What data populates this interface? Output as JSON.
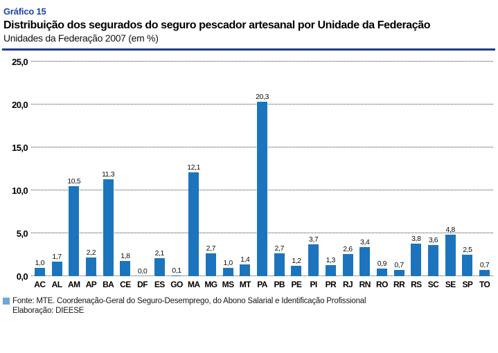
{
  "header": {
    "kicker": "Gráfico 15",
    "title": "Distribuição dos segurados do seguro pescador artesanal por Unidade da Federação",
    "subtitle": "Unidades da Federação 2007 (em %)"
  },
  "footer": {
    "source": "Fonte: MTE. Coordenação-Geral do Seguro-Desemprego, do Abono Salarial e Identificação Profissional",
    "elaboration": "Elaboração: DIEESE"
  },
  "colors": {
    "bar": "#1c75bc",
    "accent_rule": "#20398f",
    "kicker_text": "#1b43a5",
    "legend_square": "#6fa8d4",
    "gridline": "#3a3a3a"
  },
  "chart_data": {
    "type": "bar",
    "title": "Distribuição dos segurados do seguro pescador artesanal por Unidade da Federação",
    "subtitle": "Unidades da Federação 2007 (em %)",
    "xlabel": "",
    "ylabel": "",
    "ylim": [
      0,
      25
    ],
    "grid": "horizontal-dotted",
    "legend_position": "none",
    "yticks": [
      0,
      5,
      10,
      15,
      20,
      25
    ],
    "ytick_labels": [
      "0,0",
      "5,0",
      "10,0",
      "15,0",
      "20,0",
      "25,0"
    ],
    "categories": [
      "AC",
      "AL",
      "AM",
      "AP",
      "BA",
      "CE",
      "DF",
      "ES",
      "GO",
      "MA",
      "MG",
      "MS",
      "MT",
      "PA",
      "PB",
      "PE",
      "PI",
      "PR",
      "RJ",
      "RN",
      "RO",
      "RR",
      "RS",
      "SC",
      "SE",
      "SP",
      "TO"
    ],
    "values": [
      1.0,
      1.7,
      10.5,
      2.2,
      11.3,
      1.8,
      0.0,
      2.1,
      0.1,
      12.1,
      2.7,
      1.0,
      1.4,
      20.3,
      2.7,
      1.2,
      3.7,
      1.3,
      2.6,
      3.4,
      0.9,
      0.7,
      3.8,
      3.6,
      4.8,
      2.5,
      0.7
    ],
    "value_labels": [
      "1,0",
      "1,7",
      "10,5",
      "2,2",
      "11,3",
      "1,8",
      "0,0",
      "2,1",
      "0,1",
      "12,1",
      "2,7",
      "1,0",
      "1,4",
      "20,3",
      "2,7",
      "1,2",
      "3,7",
      "1,3",
      "2,6",
      "3,4",
      "0,9",
      "0,7",
      "3,8",
      "3,6",
      "4,8",
      "2,5",
      "0,7"
    ]
  }
}
